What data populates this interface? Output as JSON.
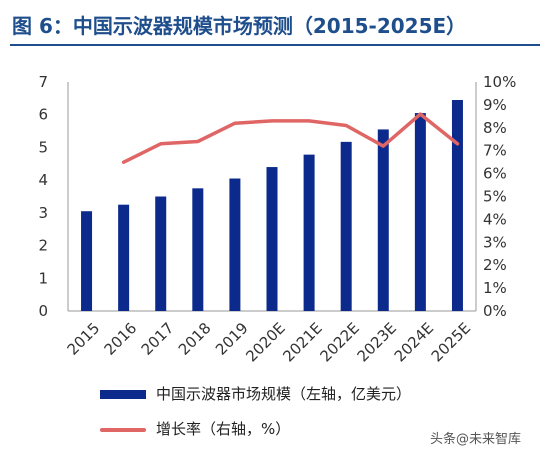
{
  "header": {
    "title": "图 6：中国示波器规模市场预测（2015-2025E）"
  },
  "legend": {
    "bar_label": "中国示波器市场规模（左轴，亿美元）",
    "line_label": "增长率（右轴，%）"
  },
  "watermark": "头条@未来智库",
  "colors": {
    "bar": "#0b2a8c",
    "line": "#e06666",
    "title": "#1f4e8c"
  },
  "chart_data": {
    "type": "bar",
    "title": "图 6：中国示波器规模市场预测（2015-2025E）",
    "categories": [
      "2015",
      "2016",
      "2017",
      "2018",
      "2019",
      "2020E",
      "2021E",
      "2022E",
      "2023E",
      "2024E",
      "2025E"
    ],
    "left_axis": {
      "ylim": [
        0,
        7
      ],
      "ticks": [
        "0",
        "1",
        "2",
        "3",
        "4",
        "5",
        "6",
        "7"
      ]
    },
    "right_axis": {
      "ylim": [
        0,
        10
      ],
      "ticks": [
        "0%",
        "1%",
        "2%",
        "3%",
        "4%",
        "5%",
        "6%",
        "7%",
        "8%",
        "9%",
        "10%"
      ]
    },
    "grid": false,
    "legend_position": "bottom",
    "series": [
      {
        "name": "中国示波器市场规模（左轴，亿美元）",
        "type": "bar",
        "axis": "left",
        "values": [
          3.05,
          3.25,
          3.5,
          3.75,
          4.05,
          4.4,
          4.78,
          5.17,
          5.55,
          6.05,
          6.45
        ]
      },
      {
        "name": "增长率（右轴，%）",
        "type": "line",
        "axis": "right",
        "values": [
          null,
          6.5,
          7.3,
          7.4,
          8.2,
          8.3,
          8.3,
          8.1,
          7.2,
          8.6,
          7.3
        ]
      }
    ]
  }
}
